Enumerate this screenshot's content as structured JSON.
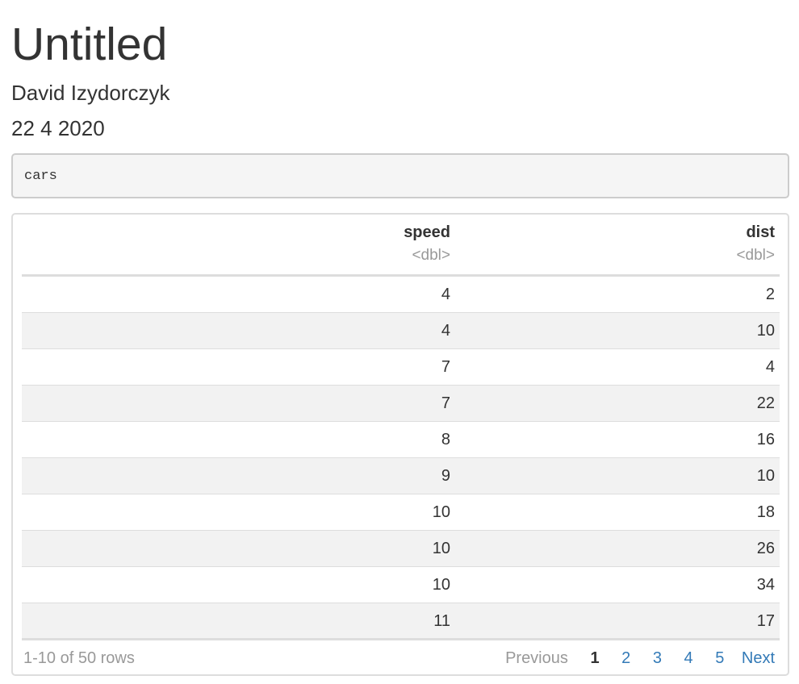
{
  "document": {
    "title": "Untitled",
    "author": "David Izydorczyk",
    "date": "22 4 2020"
  },
  "code": "cars",
  "table": {
    "columns": [
      {
        "name": "speed",
        "type": "<dbl>"
      },
      {
        "name": "dist",
        "type": "<dbl>"
      }
    ],
    "rows": [
      [
        "4",
        "2"
      ],
      [
        "4",
        "10"
      ],
      [
        "7",
        "4"
      ],
      [
        "7",
        "22"
      ],
      [
        "8",
        "16"
      ],
      [
        "9",
        "10"
      ],
      [
        "10",
        "18"
      ],
      [
        "10",
        "26"
      ],
      [
        "10",
        "34"
      ],
      [
        "11",
        "17"
      ]
    ],
    "row_info": "1-10 of 50 rows",
    "pagination": {
      "previous": "Previous",
      "pages": [
        "1",
        "2",
        "3",
        "4",
        "5"
      ],
      "current": "1",
      "next": "Next"
    }
  }
}
